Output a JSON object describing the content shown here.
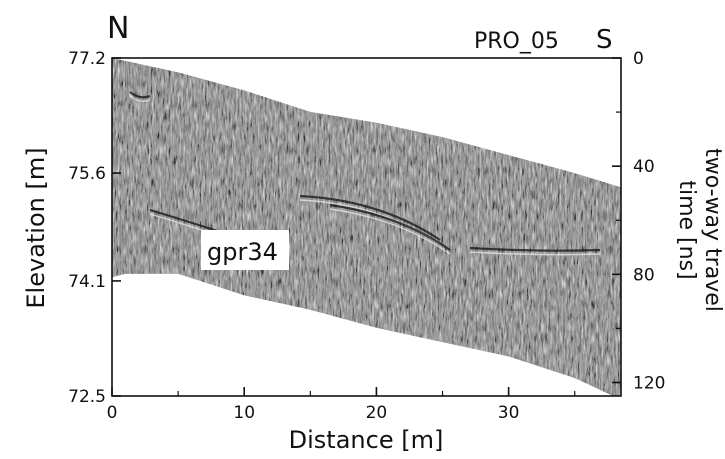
{
  "chart_data": {
    "type": "heatmap",
    "title": "PRO_05",
    "direction_left": "N",
    "direction_right": "S",
    "xlabel": "Distance [m]",
    "ylabel_left": "Elevation [m]",
    "ylabel_right_line1": "two-way travel",
    "ylabel_right_line2": "time [ns]",
    "annotation": "gpr34",
    "xlim": [
      0,
      38.5
    ],
    "ylim_left": [
      72.5,
      77.2
    ],
    "ylim_right": [
      125,
      0
    ],
    "x_ticks": [
      0,
      10,
      20,
      30
    ],
    "x_tick_labels": [
      "0",
      "10",
      "20",
      "30"
    ],
    "y_left_ticks": [
      77.2,
      75.6,
      74.1,
      72.5
    ],
    "y_left_tick_labels": [
      "77.2",
      "75.6",
      "74.1",
      "72.5"
    ],
    "y_right_ticks": [
      0,
      40,
      80,
      120
    ],
    "y_right_tick_labels": [
      "0",
      "40",
      "80",
      "120"
    ],
    "radargram_top_elevation": {
      "distance": [
        0,
        5,
        10,
        15,
        20,
        25,
        30,
        35,
        38.5
      ],
      "elevation": [
        77.2,
        77.0,
        76.75,
        76.45,
        76.3,
        76.1,
        75.85,
        75.6,
        75.4
      ]
    },
    "radargram_bottom_elevation": {
      "distance": [
        0,
        1,
        5,
        10,
        15,
        20,
        25,
        30,
        35,
        38.5
      ],
      "elevation": [
        74.15,
        74.2,
        74.2,
        73.9,
        73.7,
        73.45,
        73.25,
        73.05,
        72.75,
        72.45
      ]
    },
    "colormap": "grayscale seismic amplitude",
    "grid": false
  }
}
